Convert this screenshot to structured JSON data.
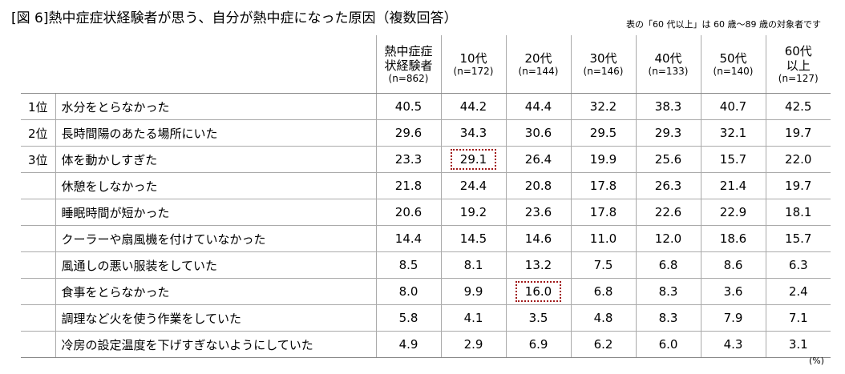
{
  "title": "[図 6]熱中症症状経験者が思う、自分が熱中症になった原因（複数回答）",
  "note": "表の「60 代以上」は 60 歳～89 歳の対象者です",
  "unit": "(%)",
  "columns": [
    {
      "name": "熱中症症状経験者",
      "n": "(n=862)"
    },
    {
      "name": "10代",
      "n": "(n=172)"
    },
    {
      "name": "20代",
      "n": "(n=144)"
    },
    {
      "name": "30代",
      "n": "(n=146)"
    },
    {
      "name": "40代",
      "n": "(n=133)"
    },
    {
      "name": "50代",
      "n": "(n=140)"
    },
    {
      "name": "60代以上",
      "n": "(n=127)"
    }
  ],
  "rows": [
    {
      "rank": "1位",
      "label": "水分をとらなかった",
      "values": [
        "40.5",
        "44.2",
        "44.4",
        "32.2",
        "38.3",
        "40.7",
        "42.5"
      ]
    },
    {
      "rank": "2位",
      "label": "長時間陽のあたる場所にいた",
      "values": [
        "29.6",
        "34.3",
        "30.6",
        "29.5",
        "29.3",
        "32.1",
        "19.7"
      ]
    },
    {
      "rank": "3位",
      "label": "体を動かしすぎた",
      "values": [
        "23.3",
        "29.1",
        "26.4",
        "19.9",
        "25.6",
        "15.7",
        "22.0"
      ]
    },
    {
      "rank": "",
      "label": "休憩をしなかった",
      "values": [
        "21.8",
        "24.4",
        "20.8",
        "17.8",
        "26.3",
        "21.4",
        "19.7"
      ]
    },
    {
      "rank": "",
      "label": "睡眠時間が短かった",
      "values": [
        "20.6",
        "19.2",
        "23.6",
        "17.8",
        "22.6",
        "22.9",
        "18.1"
      ]
    },
    {
      "rank": "",
      "label": "クーラーや扇風機を付けていなかった",
      "values": [
        "14.4",
        "14.5",
        "14.6",
        "11.0",
        "12.0",
        "18.6",
        "15.7"
      ]
    },
    {
      "rank": "",
      "label": "風通しの悪い服装をしていた",
      "values": [
        "8.5",
        "8.1",
        "13.2",
        "7.5",
        "6.8",
        "8.6",
        "6.3"
      ]
    },
    {
      "rank": "",
      "label": "食事をとらなかった",
      "values": [
        "8.0",
        "9.9",
        "16.0",
        "6.8",
        "8.3",
        "3.6",
        "2.4"
      ]
    },
    {
      "rank": "",
      "label": "調理など火を使う作業をしていた",
      "values": [
        "5.8",
        "4.1",
        "3.5",
        "4.8",
        "8.3",
        "7.9",
        "7.1"
      ]
    },
    {
      "rank": "",
      "label": "冷房の設定温度を下げすぎないようにしていた",
      "values": [
        "4.9",
        "2.9",
        "6.9",
        "6.2",
        "6.0",
        "4.3",
        "3.1"
      ]
    }
  ],
  "highlight_color": "#a01818"
}
